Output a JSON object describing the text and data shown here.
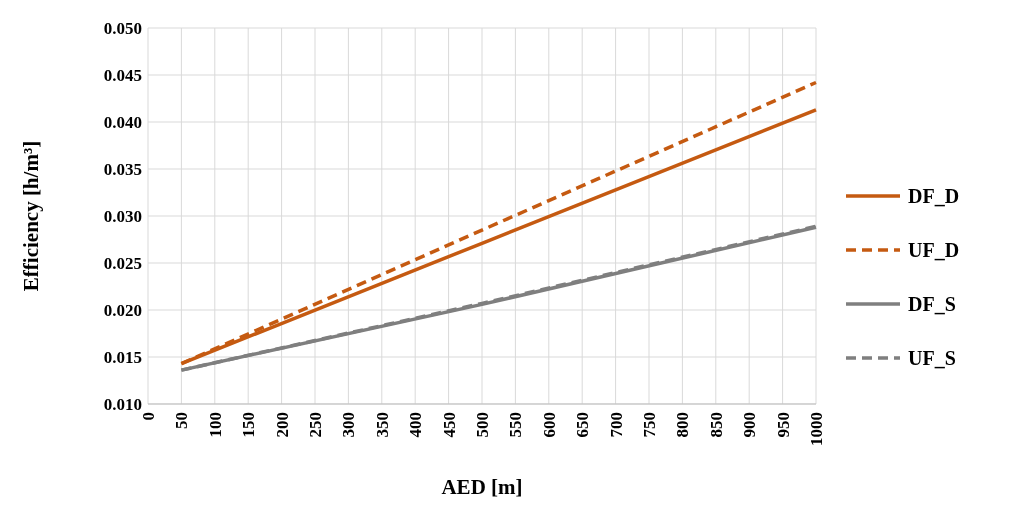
{
  "chart_data": {
    "type": "line",
    "xlabel": "AED [m]",
    "ylabel": "Efficiency [h/m³]",
    "xlim": [
      0,
      1000
    ],
    "xticks": [
      0,
      50,
      100,
      150,
      200,
      250,
      300,
      350,
      400,
      450,
      500,
      550,
      600,
      650,
      700,
      750,
      800,
      850,
      900,
      950,
      1000
    ],
    "ylim": [
      0.01,
      0.05
    ],
    "yticks": [
      {
        "value": 0.01,
        "label": "0.010"
      },
      {
        "value": 0.015,
        "label": "0.015"
      },
      {
        "value": 0.02,
        "label": "0.020"
      },
      {
        "value": 0.025,
        "label": "0.025"
      },
      {
        "value": 0.03,
        "label": "0.030"
      },
      {
        "value": 0.035,
        "label": "0.035"
      },
      {
        "value": 0.04,
        "label": "0.040"
      },
      {
        "value": 0.045,
        "label": "0.045"
      },
      {
        "value": 0.05,
        "label": "0.050"
      }
    ],
    "grid": true,
    "legend": "right",
    "marker": "none",
    "series": [
      {
        "name": "DF_D",
        "color": "#c55a11",
        "line_style": "solid",
        "x": [
          50,
          500,
          1000
        ],
        "values": [
          0.0143,
          0.0271,
          0.0413
        ]
      },
      {
        "name": "UF_D",
        "color": "#c55a11",
        "line_style": "dashed",
        "x": [
          50,
          500,
          1000
        ],
        "values": [
          0.0143,
          0.0285,
          0.0442
        ]
      },
      {
        "name": "DF_S",
        "color": "#7f7f7f",
        "line_style": "solid",
        "x": [
          50,
          500,
          1000
        ],
        "values": [
          0.0136,
          0.0206,
          0.0288
        ]
      },
      {
        "name": "UF_S",
        "color": "#7f7f7f",
        "line_style": "dashed",
        "x": [
          50,
          500,
          1000
        ],
        "values": [
          0.0136,
          0.0207,
          0.0289
        ]
      }
    ]
  }
}
